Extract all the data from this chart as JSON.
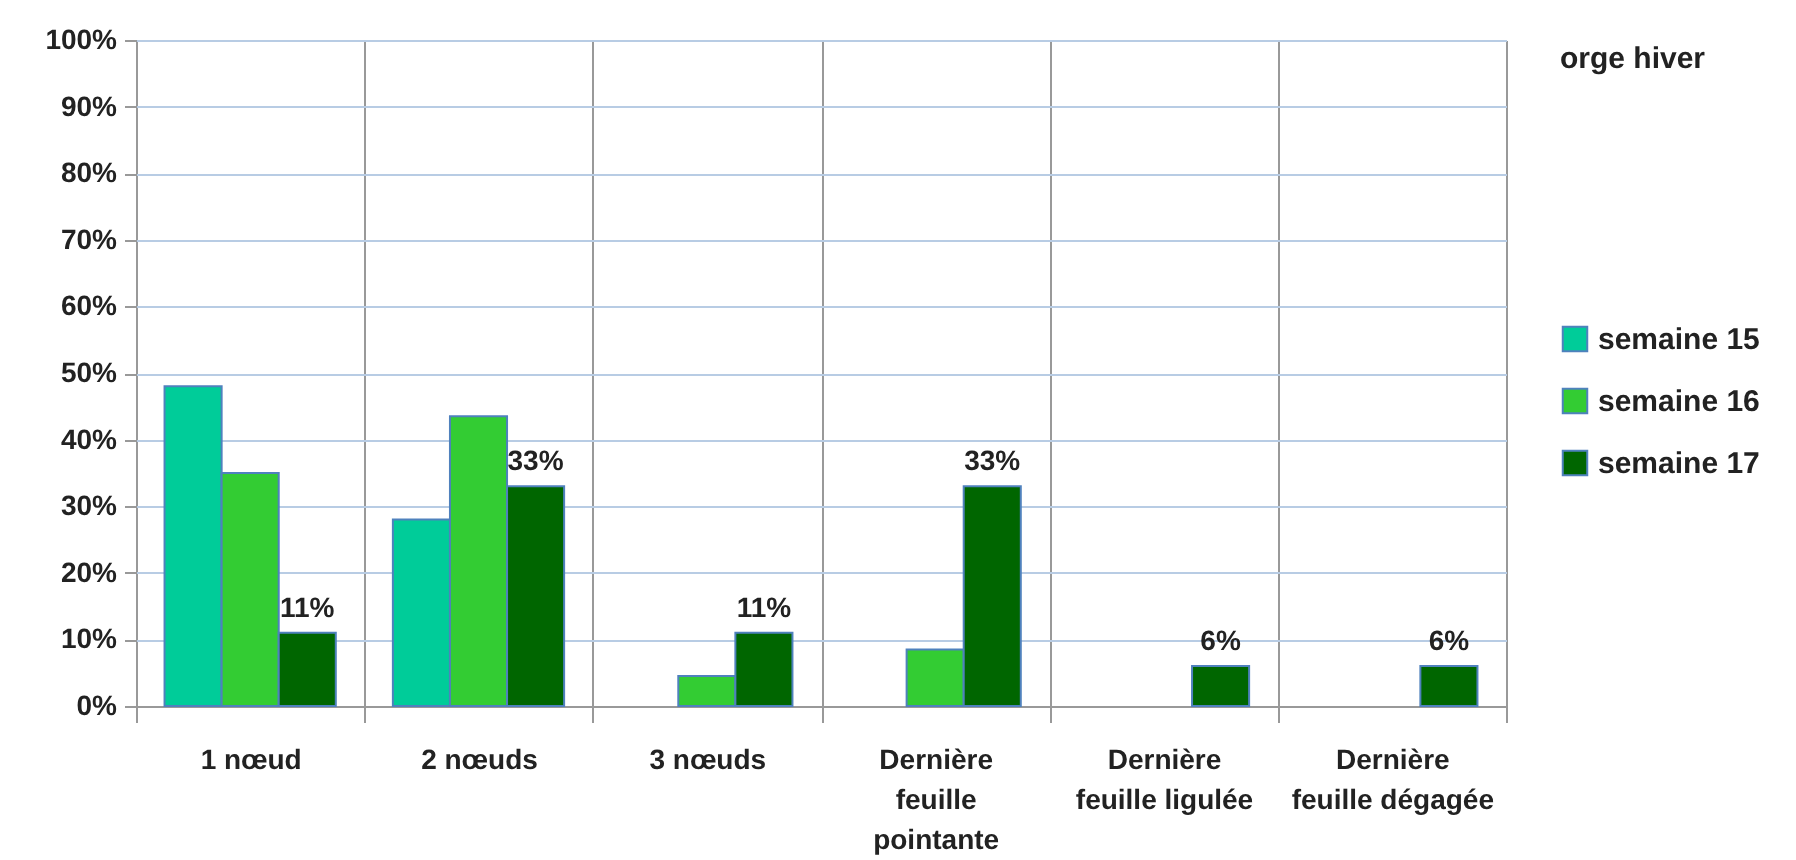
{
  "chart_data": {
    "type": "bar",
    "legend_title": "orge hiver",
    "categories": [
      "1 nœud",
      "2 nœuds",
      "3 nœuds",
      "Dernière feuille pointante",
      "Dernière feuille ligulée",
      "Dernière feuille dégagée"
    ],
    "series": [
      {
        "name": "semaine 15",
        "color": "#00cc99",
        "values": [
          48,
          28,
          null,
          null,
          null,
          null
        ]
      },
      {
        "name": "semaine 16",
        "color": "#33cc33",
        "values": [
          35,
          43.5,
          4.5,
          8.5,
          null,
          null
        ]
      },
      {
        "name": "semaine 17",
        "color": "#006600",
        "values": [
          11,
          33,
          11,
          33,
          6,
          6
        ],
        "value_labels": [
          "11%",
          "33%",
          "11%",
          "33%",
          "6%",
          "6%"
        ]
      }
    ],
    "ylim": [
      0,
      100
    ],
    "yticks": [
      {
        "value": 0,
        "label": "0%"
      },
      {
        "value": 10,
        "label": "10%"
      },
      {
        "value": 20,
        "label": "20%"
      },
      {
        "value": 30,
        "label": "30%"
      },
      {
        "value": 40,
        "label": "40%"
      },
      {
        "value": 50,
        "label": "50%"
      },
      {
        "value": 60,
        "label": "60%"
      },
      {
        "value": 70,
        "label": "70%"
      },
      {
        "value": 80,
        "label": "80%"
      },
      {
        "value": 90,
        "label": "90%"
      },
      {
        "value": 100,
        "label": "100%"
      }
    ],
    "grid": true,
    "legend": "right"
  }
}
